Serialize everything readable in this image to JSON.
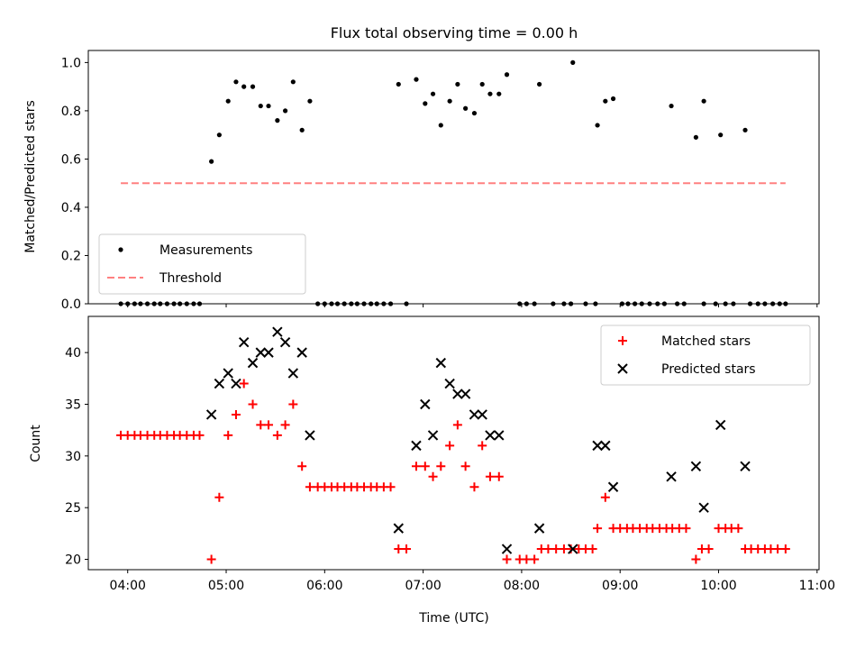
{
  "chart_data": [
    {
      "type": "scatter",
      "title": "Flux total observing time = 0.00 h",
      "xlabel": "",
      "ylabel": "Matched/Predicted stars",
      "xlim": [
        3.6,
        11.02
      ],
      "ylim": [
        0,
        1.05
      ],
      "x_ticks": [
        "04:00",
        "05:00",
        "06:00",
        "07:00",
        "08:00",
        "09:00",
        "10:00",
        "11:00"
      ],
      "y_ticks": [
        "0.0",
        "0.2",
        "0.4",
        "0.6",
        "0.8",
        "1.0"
      ],
      "grid": false,
      "legend_position": "lower-left",
      "series": [
        {
          "name": "Measurements",
          "color": "#000000",
          "marker": "dot",
          "points": [
            [
              3.93,
              0
            ],
            [
              4.0,
              0
            ],
            [
              4.07,
              0
            ],
            [
              4.13,
              0
            ],
            [
              4.2,
              0
            ],
            [
              4.27,
              0
            ],
            [
              4.33,
              0
            ],
            [
              4.4,
              0
            ],
            [
              4.47,
              0
            ],
            [
              4.53,
              0
            ],
            [
              4.6,
              0
            ],
            [
              4.67,
              0
            ],
            [
              4.73,
              0
            ],
            [
              4.85,
              0.59
            ],
            [
              4.93,
              0.7
            ],
            [
              5.02,
              0.84
            ],
            [
              5.1,
              0.92
            ],
            [
              5.18,
              0.9
            ],
            [
              5.27,
              0.9
            ],
            [
              5.35,
              0.82
            ],
            [
              5.43,
              0.82
            ],
            [
              5.52,
              0.76
            ],
            [
              5.6,
              0.8
            ],
            [
              5.68,
              0.92
            ],
            [
              5.77,
              0.72
            ],
            [
              5.85,
              0.84
            ],
            [
              5.93,
              0
            ],
            [
              6.0,
              0
            ],
            [
              6.07,
              0
            ],
            [
              6.13,
              0
            ],
            [
              6.2,
              0
            ],
            [
              6.27,
              0
            ],
            [
              6.33,
              0
            ],
            [
              6.4,
              0
            ],
            [
              6.47,
              0
            ],
            [
              6.53,
              0
            ],
            [
              6.6,
              0
            ],
            [
              6.67,
              0
            ],
            [
              6.83,
              0
            ],
            [
              6.75,
              0.91
            ],
            [
              6.93,
              0.93
            ],
            [
              7.02,
              0.83
            ],
            [
              7.1,
              0.87
            ],
            [
              7.18,
              0.74
            ],
            [
              7.27,
              0.84
            ],
            [
              7.35,
              0.91
            ],
            [
              7.43,
              0.81
            ],
            [
              7.52,
              0.79
            ],
            [
              7.6,
              0.91
            ],
            [
              7.68,
              0.87
            ],
            [
              7.77,
              0.87
            ],
            [
              7.85,
              0.95
            ],
            [
              7.98,
              0
            ],
            [
              8.05,
              0
            ],
            [
              8.13,
              0
            ],
            [
              8.32,
              0
            ],
            [
              8.43,
              0
            ],
            [
              8.5,
              0
            ],
            [
              8.65,
              0
            ],
            [
              8.75,
              0
            ],
            [
              8.18,
              0.91
            ],
            [
              8.52,
              1.0
            ],
            [
              8.77,
              0.74
            ],
            [
              8.85,
              0.84
            ],
            [
              8.93,
              0.85
            ],
            [
              9.02,
              0
            ],
            [
              9.08,
              0
            ],
            [
              9.15,
              0
            ],
            [
              9.22,
              0
            ],
            [
              9.3,
              0
            ],
            [
              9.38,
              0
            ],
            [
              9.45,
              0
            ],
            [
              9.58,
              0
            ],
            [
              9.65,
              0
            ],
            [
              9.85,
              0
            ],
            [
              9.97,
              0
            ],
            [
              10.07,
              0
            ],
            [
              10.15,
              0
            ],
            [
              10.32,
              0
            ],
            [
              10.4,
              0
            ],
            [
              10.47,
              0
            ],
            [
              10.55,
              0
            ],
            [
              10.62,
              0
            ],
            [
              10.68,
              0
            ],
            [
              9.52,
              0.82
            ],
            [
              9.77,
              0.69
            ],
            [
              9.85,
              0.84
            ],
            [
              10.02,
              0.7
            ],
            [
              10.27,
              0.72
            ]
          ]
        },
        {
          "name": "Threshold",
          "color": "#ff8080",
          "style": "dashed",
          "points": [
            [
              3.93,
              0.5
            ],
            [
              10.68,
              0.5
            ]
          ]
        }
      ]
    },
    {
      "type": "scatter",
      "title": "",
      "xlabel": "Time (UTC)",
      "ylabel": "Count",
      "xlim": [
        3.6,
        11.02
      ],
      "ylim": [
        19,
        43.5
      ],
      "x_ticks": [
        "04:00",
        "05:00",
        "06:00",
        "07:00",
        "08:00",
        "09:00",
        "10:00",
        "11:00"
      ],
      "y_ticks": [
        "20",
        "25",
        "30",
        "35",
        "40"
      ],
      "grid": false,
      "legend_position": "top-right",
      "series": [
        {
          "name": "Matched stars",
          "color": "#ff0000",
          "marker": "plus",
          "points": [
            [
              3.93,
              32
            ],
            [
              4.0,
              32
            ],
            [
              4.07,
              32
            ],
            [
              4.13,
              32
            ],
            [
              4.2,
              32
            ],
            [
              4.27,
              32
            ],
            [
              4.33,
              32
            ],
            [
              4.4,
              32
            ],
            [
              4.47,
              32
            ],
            [
              4.53,
              32
            ],
            [
              4.6,
              32
            ],
            [
              4.67,
              32
            ],
            [
              4.73,
              32
            ],
            [
              4.85,
              20
            ],
            [
              4.93,
              26
            ],
            [
              5.02,
              32
            ],
            [
              5.1,
              34
            ],
            [
              5.18,
              37
            ],
            [
              5.27,
              35
            ],
            [
              5.35,
              33
            ],
            [
              5.43,
              33
            ],
            [
              5.52,
              32
            ],
            [
              5.6,
              33
            ],
            [
              5.68,
              35
            ],
            [
              5.77,
              29
            ],
            [
              5.85,
              27
            ],
            [
              5.93,
              27
            ],
            [
              6.0,
              27
            ],
            [
              6.07,
              27
            ],
            [
              6.13,
              27
            ],
            [
              6.2,
              27
            ],
            [
              6.27,
              27
            ],
            [
              6.33,
              27
            ],
            [
              6.4,
              27
            ],
            [
              6.47,
              27
            ],
            [
              6.53,
              27
            ],
            [
              6.6,
              27
            ],
            [
              6.67,
              27
            ],
            [
              6.75,
              21
            ],
            [
              6.83,
              21
            ],
            [
              6.93,
              29
            ],
            [
              7.02,
              29
            ],
            [
              7.1,
              28
            ],
            [
              7.18,
              29
            ],
            [
              7.27,
              31
            ],
            [
              7.35,
              33
            ],
            [
              7.43,
              29
            ],
            [
              7.52,
              27
            ],
            [
              7.6,
              31
            ],
            [
              7.68,
              28
            ],
            [
              7.77,
              28
            ],
            [
              7.85,
              20
            ],
            [
              7.98,
              20
            ],
            [
              8.05,
              20
            ],
            [
              8.13,
              20
            ],
            [
              8.2,
              21
            ],
            [
              8.27,
              21
            ],
            [
              8.35,
              21
            ],
            [
              8.43,
              21
            ],
            [
              8.5,
              21
            ],
            [
              8.58,
              21
            ],
            [
              8.65,
              21
            ],
            [
              8.72,
              21
            ],
            [
              8.77,
              23
            ],
            [
              8.85,
              26
            ],
            [
              8.93,
              23
            ],
            [
              9.0,
              23
            ],
            [
              9.07,
              23
            ],
            [
              9.13,
              23
            ],
            [
              9.2,
              23
            ],
            [
              9.27,
              23
            ],
            [
              9.33,
              23
            ],
            [
              9.4,
              23
            ],
            [
              9.47,
              23
            ],
            [
              9.53,
              23
            ],
            [
              9.6,
              23
            ],
            [
              9.67,
              23
            ],
            [
              9.77,
              20
            ],
            [
              9.83,
              21
            ],
            [
              9.9,
              21
            ],
            [
              10.0,
              23
            ],
            [
              10.07,
              23
            ],
            [
              10.13,
              23
            ],
            [
              10.2,
              23
            ],
            [
              10.27,
              21
            ],
            [
              10.33,
              21
            ],
            [
              10.4,
              21
            ],
            [
              10.47,
              21
            ],
            [
              10.53,
              21
            ],
            [
              10.6,
              21
            ],
            [
              10.68,
              21
            ]
          ]
        },
        {
          "name": "Predicted stars",
          "color": "#000000",
          "marker": "x",
          "points": [
            [
              4.85,
              34
            ],
            [
              4.93,
              37
            ],
            [
              5.02,
              38
            ],
            [
              5.1,
              37
            ],
            [
              5.18,
              41
            ],
            [
              5.27,
              39
            ],
            [
              5.35,
              40
            ],
            [
              5.43,
              40
            ],
            [
              5.52,
              42
            ],
            [
              5.6,
              41
            ],
            [
              5.68,
              38
            ],
            [
              5.77,
              40
            ],
            [
              5.85,
              32
            ],
            [
              6.75,
              23
            ],
            [
              6.93,
              31
            ],
            [
              7.02,
              35
            ],
            [
              7.1,
              32
            ],
            [
              7.18,
              39
            ],
            [
              7.27,
              37
            ],
            [
              7.35,
              36
            ],
            [
              7.43,
              36
            ],
            [
              7.52,
              34
            ],
            [
              7.6,
              34
            ],
            [
              7.68,
              32
            ],
            [
              7.77,
              32
            ],
            [
              7.85,
              21
            ],
            [
              8.18,
              23
            ],
            [
              8.52,
              21
            ],
            [
              8.77,
              31
            ],
            [
              8.85,
              31
            ],
            [
              8.93,
              27
            ],
            [
              9.52,
              28
            ],
            [
              9.77,
              29
            ],
            [
              9.85,
              25
            ],
            [
              10.02,
              33
            ],
            [
              10.27,
              29
            ]
          ]
        }
      ]
    }
  ]
}
